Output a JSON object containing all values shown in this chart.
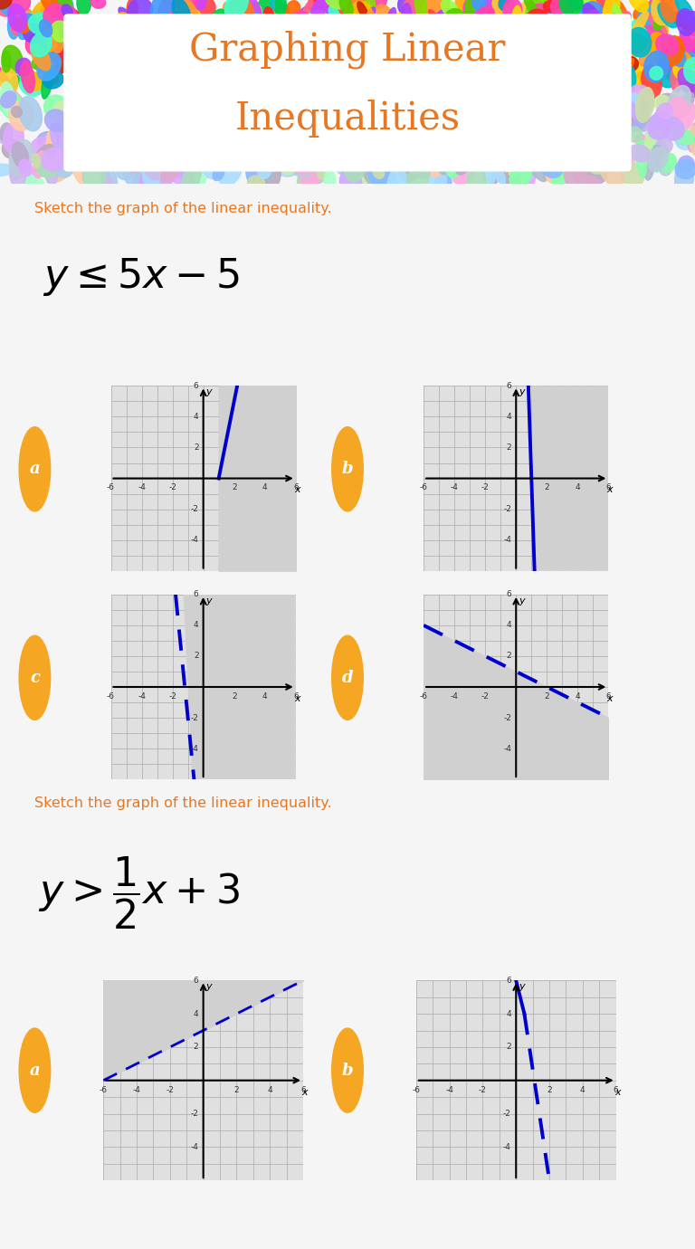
{
  "title_line1": "Graphing Linear",
  "title_line2": "Inequalities",
  "title_color": "#E87722",
  "bg_color": "#f5f5f5",
  "instruction": "Sketch the graph of the linear inequality.",
  "instruction_color": "#E87722",
  "label_color": "#F5A623",
  "shade_color": "#d0d0d0",
  "graph_bg": "#e0e0e0",
  "line_color": "#0000CD",
  "inequality1": "y ≤ 5x − 5",
  "inequality2_line1": "y >",
  "inequality2_line2": "1/2 x + 3"
}
